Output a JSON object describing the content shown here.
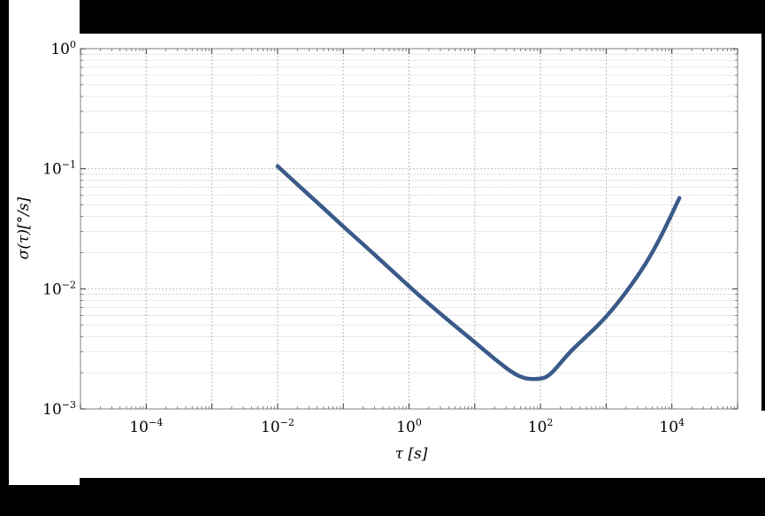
{
  "chart_data": {
    "type": "line",
    "title": "",
    "xlabel": "τ [s]",
    "ylabel": "σ(τ)[°/s]",
    "xscale": "log",
    "yscale": "log",
    "xlim": [
      1e-05,
      100000
    ],
    "ylim": [
      0.001,
      1
    ],
    "grid": true,
    "x_ticks": [
      {
        "value": 0.0001,
        "base": "10",
        "exp": "−4"
      },
      {
        "value": 0.01,
        "base": "10",
        "exp": "−2"
      },
      {
        "value": 1,
        "base": "10",
        "exp": "0"
      },
      {
        "value": 100,
        "base": "10",
        "exp": "2"
      },
      {
        "value": 10000,
        "base": "10",
        "exp": "4"
      }
    ],
    "y_ticks": [
      {
        "value": 0.001,
        "base": "10",
        "exp": "−3"
      },
      {
        "value": 0.01,
        "base": "10",
        "exp": "−2"
      },
      {
        "value": 0.1,
        "base": "10",
        "exp": "−1"
      },
      {
        "value": 1,
        "base": "10",
        "exp": "0"
      }
    ],
    "series": [
      {
        "color": "#3a5a8a",
        "x": [
          0.01,
          0.02,
          0.05,
          0.1,
          0.2,
          0.5,
          1,
          2,
          5,
          10,
          20,
          40,
          60,
          90,
          120,
          150,
          200,
          300,
          500,
          1000,
          2000,
          4000,
          7000,
          10000,
          13000
        ],
        "y": [
          0.105,
          0.074,
          0.047,
          0.033,
          0.0235,
          0.0149,
          0.0105,
          0.0075,
          0.0049,
          0.0036,
          0.0026,
          0.00195,
          0.00178,
          0.00177,
          0.00182,
          0.002,
          0.0024,
          0.0031,
          0.004,
          0.0058,
          0.0093,
          0.016,
          0.028,
          0.042,
          0.057
        ]
      }
    ]
  }
}
